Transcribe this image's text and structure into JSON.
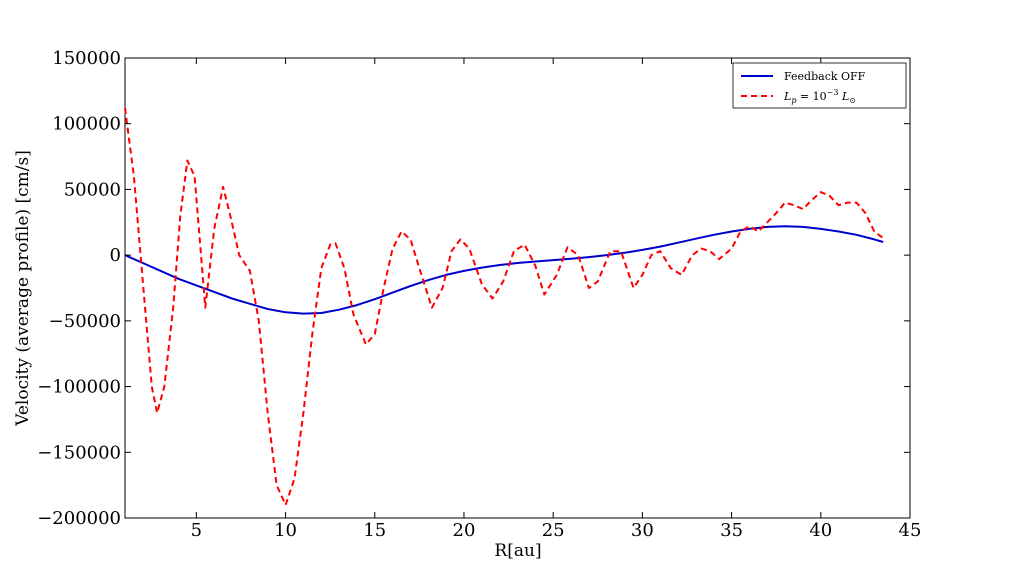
{
  "chart_data": {
    "type": "line",
    "xlabel": "R[au]",
    "ylabel": "Velocity (average profile) [cm/s]",
    "xlim": [
      1,
      45
    ],
    "ylim": [
      -200000,
      150000
    ],
    "xticks": [
      5,
      10,
      15,
      20,
      25,
      30,
      35,
      40,
      45
    ],
    "yticks": [
      -200000,
      -150000,
      -100000,
      -50000,
      0,
      50000,
      100000,
      150000
    ],
    "xtick_labels": [
      "5",
      "10",
      "15",
      "20",
      "25",
      "30",
      "35",
      "40",
      "45"
    ],
    "ytick_labels": [
      "−200000",
      "−150000",
      "−100000",
      "−50000",
      "0",
      "50000",
      "100000",
      "150000"
    ],
    "grid": false,
    "legend_position": "top-right",
    "series": [
      {
        "name": "Feedback OFF",
        "color": "#0000cc",
        "style": "solid",
        "x": [
          1,
          2,
          3,
          4,
          5,
          6,
          7,
          8,
          9,
          10,
          11,
          12,
          13,
          14,
          15,
          16,
          17,
          18,
          19,
          20,
          21,
          22,
          23,
          24,
          25,
          26,
          27,
          28,
          29,
          30,
          31,
          32,
          33,
          34,
          35,
          36,
          37,
          38,
          39,
          40,
          41,
          42,
          43,
          43.5
        ],
        "y": [
          0,
          -6000,
          -12000,
          -18000,
          -23000,
          -28000,
          -33000,
          -37000,
          -41000,
          -43500,
          -44500,
          -44000,
          -41500,
          -38000,
          -33500,
          -28500,
          -23500,
          -19000,
          -15000,
          -12000,
          -9500,
          -7500,
          -6000,
          -4800,
          -3800,
          -2800,
          -1500,
          0,
          1800,
          4000,
          6500,
          9500,
          12500,
          15500,
          18000,
          20000,
          21500,
          22000,
          21500,
          20000,
          18000,
          15500,
          12000,
          10000
        ]
      },
      {
        "name": "L_p = 10^-3 L_sun",
        "color": "#ff0000",
        "style": "dashed",
        "x": [
          1,
          1.5,
          2,
          2.5,
          2.8,
          3.2,
          3.7,
          4.1,
          4.5,
          4.9,
          5.5,
          6.0,
          6.5,
          6.9,
          7.4,
          8.0,
          8.5,
          9.0,
          9.5,
          10.0,
          10.5,
          11.0,
          11.5,
          12.0,
          12.5,
          12.8,
          13.3,
          13.8,
          14.5,
          15.0,
          15.5,
          16.0,
          16.5,
          17.0,
          17.5,
          18.2,
          18.8,
          19.3,
          19.8,
          20.3,
          21.0,
          21.6,
          22.2,
          22.8,
          23.4,
          24.0,
          24.5,
          25.2,
          25.8,
          26.4,
          27.0,
          27.5,
          28.2,
          28.8,
          29.5,
          30.0,
          30.5,
          31.0,
          31.6,
          32.2,
          32.8,
          33.3,
          33.8,
          34.3,
          35.0,
          35.5,
          36.0,
          36.5,
          37.0,
          37.5,
          38.0,
          38.5,
          39.0,
          39.5,
          40.0,
          40.5,
          41.0,
          41.5,
          42.0,
          42.5,
          43.0,
          43.5
        ],
        "y": [
          112000,
          60000,
          -20000,
          -100000,
          -120000,
          -100000,
          -40000,
          30000,
          72000,
          60000,
          -40000,
          20000,
          52000,
          30000,
          0,
          -12000,
          -50000,
          -120000,
          -175000,
          -190000,
          -170000,
          -120000,
          -60000,
          -10000,
          8000,
          9000,
          -10000,
          -45000,
          -68000,
          -60000,
          -25000,
          5000,
          18000,
          12000,
          -10000,
          -40000,
          -25000,
          3000,
          12000,
          5000,
          -22000,
          -33000,
          -20000,
          3000,
          8000,
          -8000,
          -30000,
          -15000,
          6000,
          0,
          -25000,
          -20000,
          3000,
          3000,
          -25000,
          -15000,
          0,
          3000,
          -10000,
          -15000,
          0,
          5000,
          3000,
          -3000,
          5000,
          18000,
          22000,
          18000,
          25000,
          32000,
          40000,
          38000,
          35000,
          42000,
          48000,
          45000,
          38000,
          40000,
          40000,
          32000,
          18000,
          13000
        ]
      }
    ]
  }
}
